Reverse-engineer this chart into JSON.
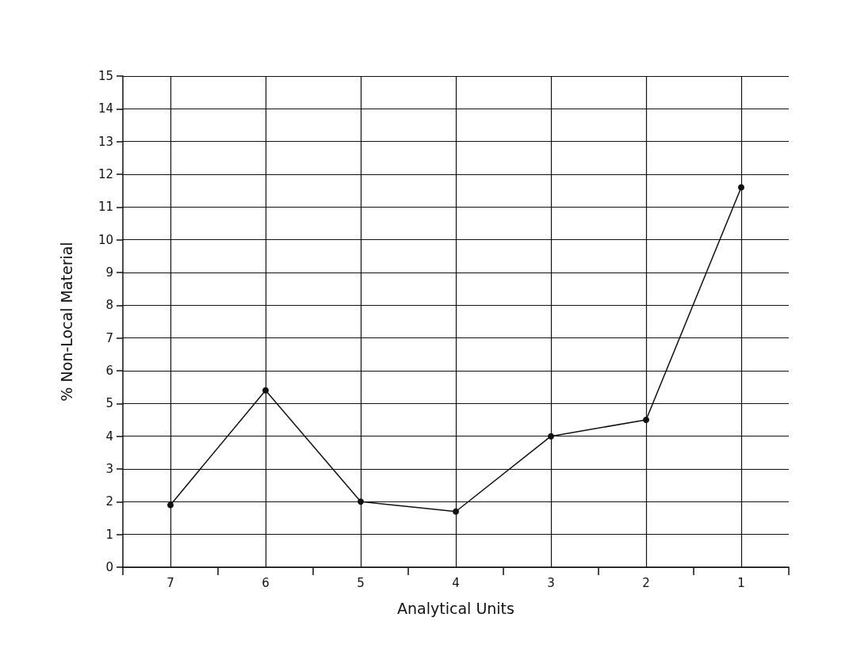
{
  "chart_data": {
    "type": "line",
    "xlabel": "Analytical Units",
    "ylabel": "% Non-Local Material",
    "categories": [
      "7",
      "6",
      "5",
      "4",
      "3",
      "2",
      "1"
    ],
    "series": [
      {
        "color": "#111111",
        "values": [
          1.9,
          5.4,
          2.0,
          1.7,
          4.0,
          4.5,
          11.6
        ]
      }
    ],
    "ylim": [
      0,
      15
    ],
    "yticks": [
      0,
      1,
      2,
      3,
      4,
      5,
      6,
      7,
      8,
      9,
      10,
      11,
      12,
      13,
      14,
      15
    ],
    "grid": true,
    "marker": "circle",
    "line_style": "solid"
  }
}
